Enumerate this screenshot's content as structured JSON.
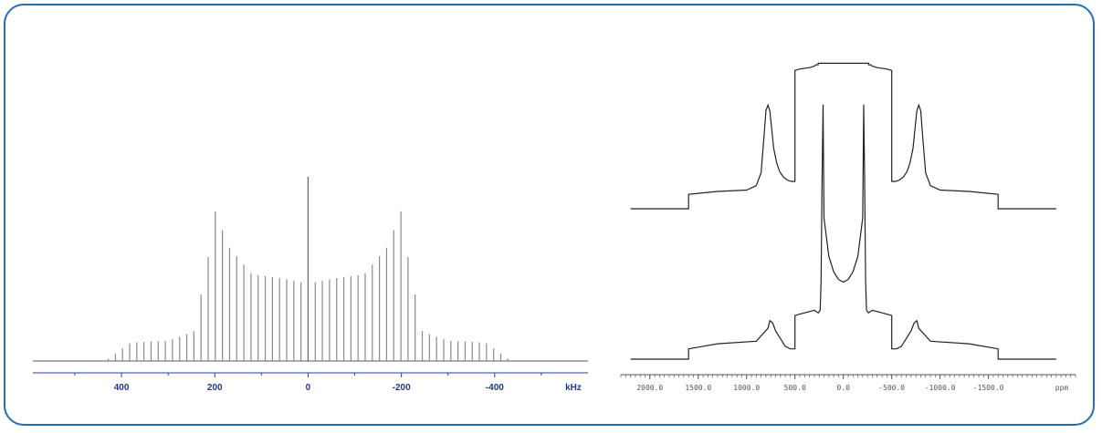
{
  "chart_data": [
    {
      "type": "line",
      "xlabel": "kHz",
      "xlim": [
        590,
        -600
      ],
      "ticks": [
        400,
        200,
        0,
        -200,
        -400
      ],
      "tick_labels": [
        "400",
        "200",
        "0",
        "-200",
        "-400"
      ],
      "ylim": [
        0,
        1.0
      ],
      "grid": false,
      "center_peak": {
        "x": 0,
        "y": 1.0
      },
      "spinning_sidebands": {
        "spacing_khz": 15.3,
        "range_khz": [
          -430,
          430
        ],
        "envelope": [
          {
            "x": 430,
            "y": 0.01
          },
          {
            "x": 380,
            "y": 0.1
          },
          {
            "x": 300,
            "y": 0.11
          },
          {
            "x": 245,
            "y": 0.16
          },
          {
            "x": 215,
            "y": 0.55
          },
          {
            "x": 200,
            "y": 0.82
          },
          {
            "x": 170,
            "y": 0.62
          },
          {
            "x": 120,
            "y": 0.47
          },
          {
            "x": 60,
            "y": 0.45
          },
          {
            "x": 20,
            "y": 0.43
          },
          {
            "x": 0,
            "y": 0.42
          },
          {
            "x": -20,
            "y": 0.43
          },
          {
            "x": -60,
            "y": 0.45
          },
          {
            "x": -120,
            "y": 0.47
          },
          {
            "x": -170,
            "y": 0.62
          },
          {
            "x": -200,
            "y": 0.82
          },
          {
            "x": -215,
            "y": 0.55
          },
          {
            "x": -245,
            "y": 0.16
          },
          {
            "x": -300,
            "y": 0.11
          },
          {
            "x": -380,
            "y": 0.1
          },
          {
            "x": -430,
            "y": 0.01
          }
        ]
      }
    },
    {
      "type": "line",
      "xlabel": "ppm",
      "xlim": [
        2300,
        -2400
      ],
      "ticks": [
        2000,
        1500,
        1000,
        500,
        0,
        -500,
        -1000,
        -1500
      ],
      "tick_labels": [
        "2000.0",
        "1500.0",
        "1000.0",
        "500.0",
        "0.0",
        "-500.0",
        "-1000.0",
        "-1500.0"
      ],
      "grid": false,
      "series": [
        {
          "x": [
            2200,
            1700,
            1600,
            1600,
            1300,
            900,
            780,
            760,
            730,
            700,
            650,
            600,
            550,
            500,
            500,
            400,
            300,
            260,
            240,
            230,
            220,
            210,
            200,
            150,
            100,
            50,
            0,
            -50,
            -100,
            -150,
            -200,
            -210,
            -220,
            -230,
            -240,
            -260,
            -300,
            -400,
            -500,
            -500,
            -550,
            -600,
            -650,
            -700,
            -730,
            -760,
            -780,
            -900,
            -1300,
            -1600,
            -1600,
            -1700,
            -2200
          ],
          "y": [
            0.0,
            0.0,
            0.0,
            0.04,
            0.06,
            0.07,
            0.12,
            0.15,
            0.14,
            0.11,
            0.08,
            0.05,
            0.04,
            0.04,
            0.17,
            0.18,
            0.19,
            0.18,
            0.19,
            0.3,
            0.7,
            0.99,
            0.55,
            0.4,
            0.34,
            0.31,
            0.3,
            0.31,
            0.34,
            0.4,
            0.55,
            0.99,
            0.7,
            0.3,
            0.19,
            0.18,
            0.19,
            0.18,
            0.17,
            0.04,
            0.04,
            0.05,
            0.08,
            0.11,
            0.14,
            0.15,
            0.12,
            0.07,
            0.06,
            0.04,
            0.0,
            0.0,
            0.0
          ]
        },
        {
          "x": [
            2200,
            1900,
            1700,
            1600,
            1600,
            1300,
            1000,
            900,
            850,
            820,
            800,
            780,
            760,
            740,
            720,
            690,
            660,
            620,
            580,
            540,
            520,
            500,
            500,
            450,
            350,
            300,
            280,
            260,
            260,
            -260,
            -260,
            -280,
            -300,
            -350,
            -450,
            -500,
            -500,
            -520,
            -540,
            -580,
            -620,
            -660,
            -690,
            -720,
            -740,
            -760,
            -780,
            -800,
            -820,
            -850,
            -900,
            -1000,
            -1300,
            -1600,
            -1600,
            -1700,
            -1900,
            -2200
          ],
          "y": [
            0.0,
            0.0,
            0.0,
            0.0,
            0.1,
            0.12,
            0.13,
            0.16,
            0.25,
            0.5,
            0.68,
            0.72,
            0.68,
            0.55,
            0.42,
            0.32,
            0.26,
            0.22,
            0.2,
            0.19,
            0.19,
            0.19,
            0.96,
            0.97,
            0.98,
            0.99,
            1.0,
            1.0,
            1.01,
            1.01,
            1.0,
            1.0,
            0.99,
            0.98,
            0.97,
            0.96,
            0.19,
            0.19,
            0.19,
            0.2,
            0.22,
            0.26,
            0.32,
            0.42,
            0.55,
            0.68,
            0.72,
            0.68,
            0.5,
            0.25,
            0.16,
            0.13,
            0.12,
            0.1,
            0.0,
            0.0,
            0.0,
            0.0
          ]
        }
      ]
    }
  ],
  "colors": {
    "frame": "#1f6fb4",
    "left_trace": "#8a8a8a",
    "left_axis": "#2b3f9e",
    "left_ticks": "#1f3a8a",
    "right_trace": "#222222",
    "right_axis": "#555555"
  }
}
